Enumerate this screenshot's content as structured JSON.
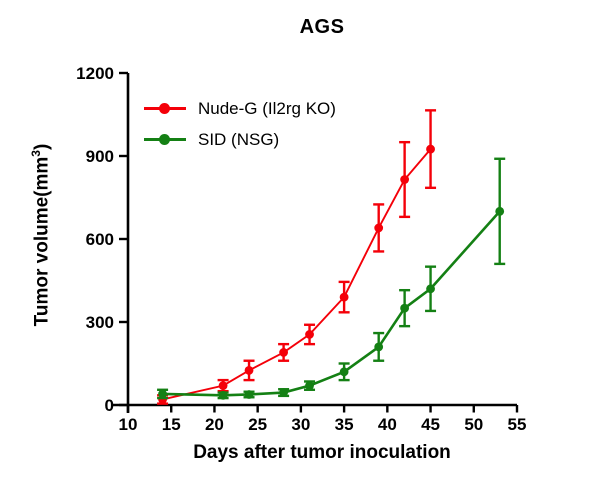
{
  "title": "AGS",
  "labels": {
    "xlabel": "Days after tumor inoculation",
    "ylabel_parts": {
      "base": "Tumor volume(mm",
      "sup": "3",
      "end": ")"
    }
  },
  "chart_data": {
    "type": "line",
    "title": "AGS",
    "xlabel": "Days after tumor inoculation",
    "ylabel": "Tumor volume(mm³)",
    "xlim": [
      10,
      55
    ],
    "ylim": [
      0,
      1200
    ],
    "xticks": [
      10,
      15,
      20,
      25,
      30,
      35,
      40,
      45,
      50,
      55
    ],
    "yticks": [
      0,
      300,
      600,
      900,
      1200
    ],
    "grid": false,
    "legend_position": "inside-top-left",
    "error_bars": true,
    "axis_color": "#000000",
    "series": [
      {
        "name": "Nude-G (Il2rg KO)",
        "color": "#F40009",
        "marker": "circle",
        "x": [
          14,
          21,
          24,
          28,
          31,
          35,
          39,
          42,
          45
        ],
        "values": [
          20,
          70,
          125,
          190,
          255,
          390,
          640,
          815,
          925
        ],
        "errors": [
          15,
          20,
          35,
          30,
          35,
          55,
          85,
          135,
          140
        ]
      },
      {
        "name": "SID (NSG)",
        "color": "#148014",
        "marker": "circle",
        "x": [
          14,
          21,
          24,
          28,
          31,
          35,
          39,
          42,
          45,
          53
        ],
        "values": [
          40,
          35,
          38,
          45,
          70,
          120,
          210,
          350,
          420,
          700
        ],
        "errors": [
          15,
          10,
          10,
          12,
          15,
          30,
          50,
          65,
          80,
          190
        ]
      }
    ]
  }
}
